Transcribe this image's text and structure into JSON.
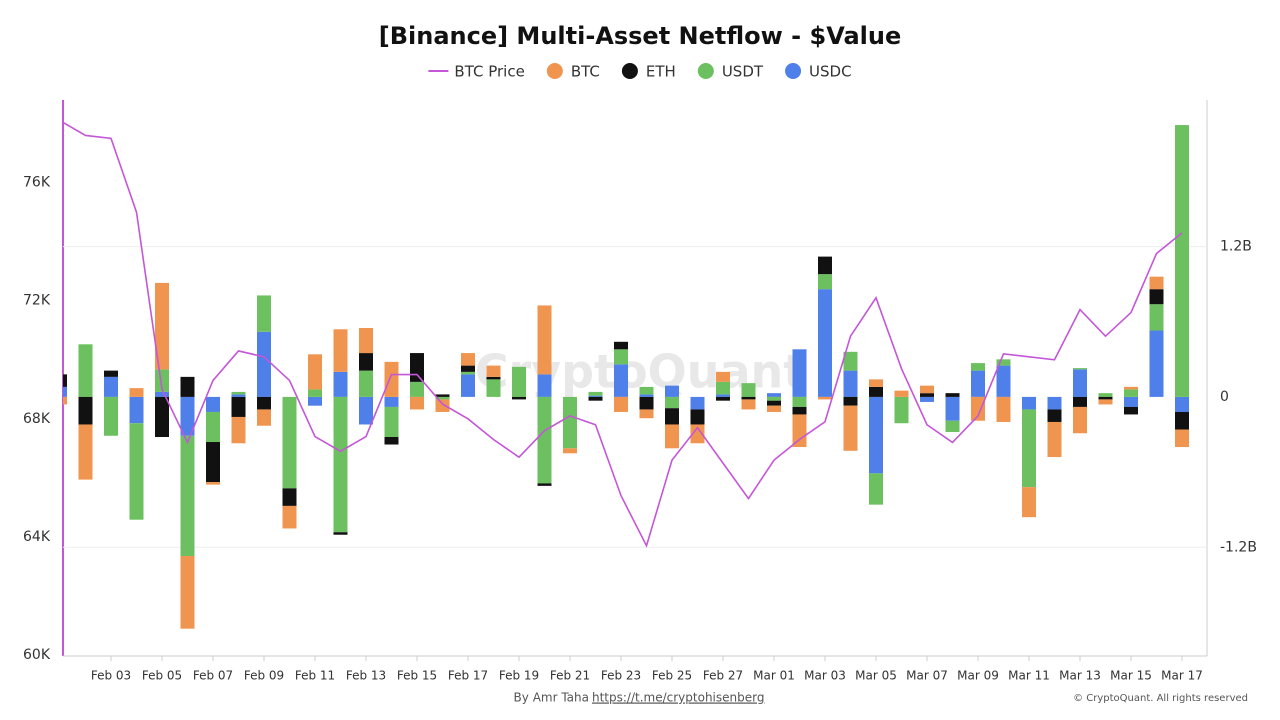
{
  "chart_data": {
    "type": "bar-line",
    "title": "[Binance] Multi-Asset Netflow - $Value",
    "watermark": "CryptoQuant",
    "credit": "By Amr Taha",
    "link": "https://t.me/cryptohisenberg",
    "copyright": "© CryptoQuant. All rights reserved",
    "categories": [
      null,
      null,
      "Feb 03",
      null,
      "Feb 05",
      null,
      "Feb 07",
      null,
      "Feb 09",
      null,
      "Feb 11",
      null,
      "Feb 13",
      null,
      "Feb 15",
      null,
      "Feb 17",
      null,
      "Feb 19",
      null,
      "Feb 21",
      null,
      "Feb 23",
      null,
      "Feb 25",
      null,
      "Feb 27",
      null,
      "Mar 01",
      null,
      "Mar 03",
      null,
      "Mar 05",
      null,
      "Mar 07",
      null,
      "Mar 09",
      null,
      "Mar 11",
      null,
      "Mar 13",
      null,
      "Mar 15",
      null,
      "Mar 17"
    ],
    "series": [
      {
        "name": "BTC Price",
        "type": "line",
        "color": "#c456d8",
        "values": [
          78.1,
          77.6,
          77.5,
          75.0,
          69.0,
          67.2,
          69.3,
          70.3,
          70.1,
          69.3,
          67.4,
          66.9,
          67.4,
          69.5,
          69.5,
          68.5,
          68.0,
          67.3,
          66.7,
          67.6,
          68.1,
          67.8,
          65.4,
          63.7,
          66.6,
          67.7,
          66.5,
          65.3,
          66.6,
          67.3,
          67.9,
          70.8,
          72.1,
          69.7,
          67.8,
          67.2,
          68.1,
          70.2,
          70.1,
          70.0,
          71.7,
          70.8,
          71.6,
          73.6,
          74.3
        ]
      },
      {
        "name": "BTC",
        "color": "#f0954f",
        "axis": "y2",
        "values": [
          -0.06,
          -0.44,
          0,
          0.07,
          0.69,
          -0.58,
          -0.02,
          -0.21,
          -0.13,
          -0.18,
          0.28,
          0.34,
          0.2,
          0.28,
          -0.1,
          -0.1,
          0.1,
          0.09,
          0,
          0.55,
          -0.04,
          0,
          -0.12,
          -0.07,
          -0.19,
          -0.15,
          0.08,
          -0.08,
          -0.05,
          -0.26,
          -0.02,
          -0.36,
          0.06,
          0.05,
          0.06,
          0,
          -0.19,
          -0.2,
          -0.24,
          -0.28,
          -0.21,
          -0.04,
          0.02,
          0.1,
          -0.14
        ]
      },
      {
        "name": "ETH",
        "color": "#111111",
        "axis": "y2",
        "values": [
          0.1,
          -0.22,
          0.05,
          0,
          -0.32,
          0.16,
          -0.32,
          -0.16,
          -0.1,
          -0.14,
          0,
          -0.02,
          0.14,
          -0.06,
          0.23,
          0.02,
          0.05,
          0.02,
          -0.02,
          -0.02,
          0,
          -0.03,
          0.06,
          -0.1,
          -0.13,
          -0.12,
          -0.03,
          -0.02,
          -0.04,
          -0.06,
          0.14,
          -0.07,
          0.08,
          0,
          0.03,
          0.03,
          0,
          0,
          0,
          -0.1,
          -0.08,
          -0.02,
          -0.06,
          0.12,
          -0.14
        ]
      },
      {
        "name": "USDT",
        "color": "#6cc05f",
        "axis": "y2",
        "values": [
          0,
          0.42,
          -0.31,
          -0.77,
          0.18,
          -0.96,
          -0.24,
          0.02,
          0.29,
          -0.73,
          0.06,
          -1.08,
          0.21,
          -0.24,
          0.12,
          -0.02,
          0.02,
          0.14,
          0.24,
          -0.69,
          -0.41,
          0.03,
          0.12,
          0.06,
          -0.09,
          0,
          0.1,
          0.11,
          -0.03,
          -0.08,
          0.12,
          0.15,
          -0.25,
          -0.21,
          0,
          -0.09,
          0.06,
          0.05,
          -0.62,
          0,
          0.01,
          0.03,
          0.06,
          0.21,
          2.17
        ]
      },
      {
        "name": "USDC",
        "color": "#4f7fe8",
        "axis": "y2",
        "values": [
          0.08,
          0,
          0.16,
          -0.21,
          0.04,
          -0.31,
          -0.12,
          0.02,
          0.52,
          0,
          -0.07,
          0.2,
          -0.22,
          -0.08,
          0,
          0,
          0.18,
          0,
          0,
          0.18,
          0,
          0.01,
          0.26,
          0.02,
          0.09,
          -0.1,
          0.02,
          0,
          0.03,
          0.38,
          0.86,
          0.21,
          -0.61,
          0,
          -0.04,
          -0.19,
          0.21,
          0.25,
          -0.1,
          -0.1,
          0.22,
          0,
          -0.08,
          0.53,
          -0.12
        ]
      }
    ],
    "ylim": [
      60,
      78.8
    ],
    "yticks": [
      {
        "value": 60,
        "label": "60K"
      },
      {
        "value": 64,
        "label": "64K"
      },
      {
        "value": 68,
        "label": "68K"
      },
      {
        "value": 72,
        "label": "72K"
      },
      {
        "value": 76,
        "label": "76K"
      }
    ],
    "y2lim": [
      -2.06,
      2.37
    ],
    "y2ticks": [
      {
        "value": -1.2,
        "label": "-1.2B"
      },
      0,
      {
        "value": 1.2,
        "label": "1.2B"
      }
    ],
    "grid": true,
    "legend": "top"
  }
}
